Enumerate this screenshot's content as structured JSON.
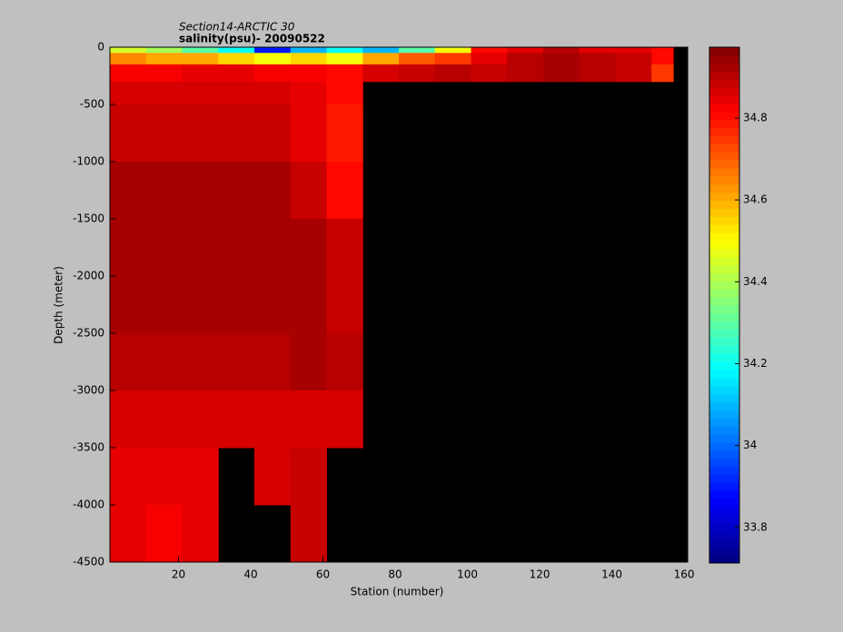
{
  "chart_data": {
    "type": "heatmap",
    "title": "Section14-ARCTIC 30",
    "subtitle": "salinity(psu)- 20090522",
    "xlabel": "Station (number)",
    "ylabel": "Depth (meter)",
    "xlim": [
      1,
      161
    ],
    "ylim": [
      -4500,
      0
    ],
    "xticks": [
      20,
      40,
      60,
      80,
      100,
      120,
      140,
      160
    ],
    "yticks": [
      -4500,
      -4000,
      -3500,
      -3000,
      -2500,
      -2000,
      -1500,
      -1000,
      -500,
      0
    ],
    "x_edges": [
      1,
      11,
      21,
      31,
      41,
      51,
      61,
      71,
      81,
      91,
      101,
      111,
      121,
      131,
      141,
      151,
      157
    ],
    "y_edges": [
      0,
      -50,
      -150,
      -300,
      -500,
      -1000,
      -1500,
      -2000,
      -2500,
      -3000,
      -3500,
      -4000,
      -4500
    ],
    "z": [
      [
        34.45,
        34.4,
        34.3,
        34.2,
        33.9,
        34.1,
        34.2,
        34.1,
        34.3,
        34.5,
        34.8,
        34.85,
        34.9,
        34.85,
        34.85,
        34.8
      ],
      [
        34.65,
        34.6,
        34.6,
        34.55,
        34.5,
        34.55,
        34.5,
        34.6,
        34.7,
        34.75,
        34.85,
        34.9,
        34.93,
        34.9,
        34.88,
        34.8
      ],
      [
        34.83,
        34.83,
        34.84,
        34.84,
        34.83,
        34.82,
        34.8,
        34.86,
        34.88,
        34.9,
        34.88,
        34.9,
        34.92,
        34.9,
        34.88,
        34.75
      ],
      [
        34.87,
        34.87,
        34.87,
        34.87,
        34.86,
        34.84,
        34.8,
        null,
        null,
        null,
        null,
        null,
        null,
        null,
        null,
        null
      ],
      [
        34.88,
        34.88,
        34.88,
        34.88,
        34.88,
        34.85,
        34.78,
        null,
        null,
        null,
        null,
        null,
        null,
        null,
        null,
        null
      ],
      [
        34.92,
        34.92,
        34.92,
        34.92,
        34.92,
        34.88,
        34.8,
        null,
        null,
        null,
        null,
        null,
        null,
        null,
        null,
        null
      ],
      [
        34.93,
        34.93,
        34.93,
        34.92,
        34.93,
        34.93,
        34.88,
        null,
        null,
        null,
        null,
        null,
        null,
        null,
        null,
        null
      ],
      [
        34.93,
        34.93,
        34.93,
        34.92,
        34.93,
        34.93,
        34.88,
        null,
        null,
        null,
        null,
        null,
        null,
        null,
        null,
        null
      ],
      [
        34.9,
        34.9,
        34.9,
        34.9,
        34.9,
        34.92,
        34.9,
        null,
        null,
        null,
        null,
        null,
        null,
        null,
        null,
        null
      ],
      [
        34.86,
        34.86,
        34.86,
        34.87,
        34.87,
        34.87,
        34.86,
        null,
        null,
        null,
        null,
        null,
        null,
        null,
        null,
        null
      ],
      [
        34.84,
        34.84,
        34.85,
        null,
        34.86,
        34.88,
        null,
        null,
        null,
        null,
        null,
        null,
        null,
        null,
        null,
        null
      ],
      [
        34.84,
        34.83,
        34.85,
        null,
        null,
        34.88,
        null,
        null,
        null,
        null,
        null,
        null,
        null,
        null,
        null,
        null
      ]
    ],
    "nan_color": "#000000",
    "colormap": "jet",
    "colorbar": {
      "clim": [
        33.713,
        34.973
      ],
      "ticks": [
        33.8,
        34,
        34.2,
        34.4,
        34.6,
        34.8
      ]
    }
  }
}
